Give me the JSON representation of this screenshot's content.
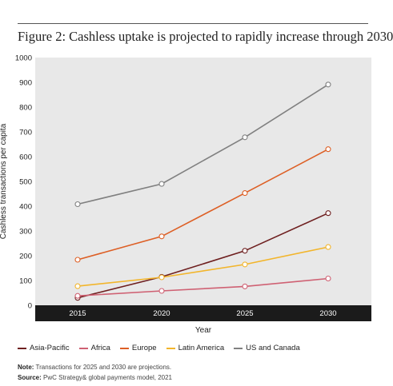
{
  "title": "Figure 2: Cashless uptake is projected to rapidly increase through 2030",
  "chart_data": {
    "type": "line",
    "title": "Figure 2: Cashless uptake is projected to rapidly increase through 2030",
    "xlabel": "Year",
    "ylabel": "Cashless transactions per capita",
    "ylim": [
      0,
      1000
    ],
    "yticks": [
      "0",
      "100",
      "200",
      "300",
      "400",
      "500",
      "600",
      "700",
      "800",
      "900",
      "1000"
    ],
    "categories": [
      "2015",
      "2020",
      "2025",
      "2030"
    ],
    "grid": false,
    "legend_position": "bottom",
    "series": [
      {
        "name": "Asia-Pacific",
        "color": "#6e1f1f",
        "values": [
          30,
          115,
          220,
          372
        ]
      },
      {
        "name": "Africa",
        "color": "#cf6173",
        "values": [
          38,
          58,
          76,
          108
        ]
      },
      {
        "name": "Europe",
        "color": "#dd5f25",
        "values": [
          184,
          278,
          453,
          630
        ]
      },
      {
        "name": "Latin America",
        "color": "#f2b52b",
        "values": [
          77,
          113,
          165,
          235
        ]
      },
      {
        "name": "US and Canada",
        "color": "#808080",
        "values": [
          408,
          490,
          678,
          891
        ]
      }
    ]
  },
  "note_label": "Note:",
  "note_text": " Transactions for 2025 and 2030 are projections.",
  "source_label": "Source:",
  "source_text": " PwC Strategy& global payments model, 2021"
}
